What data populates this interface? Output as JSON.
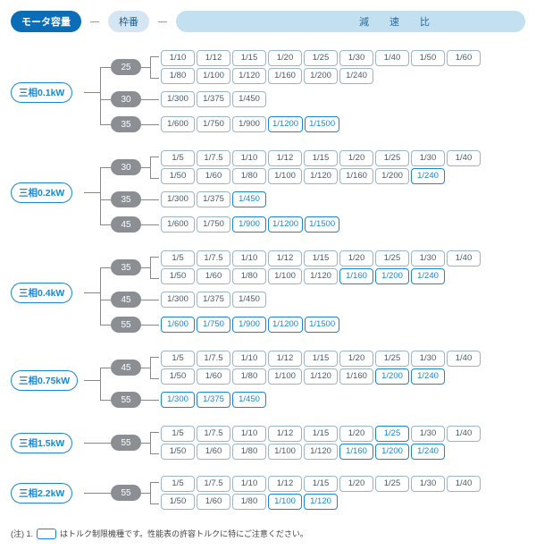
{
  "header": {
    "motor": "モータ容量",
    "frame": "枠番",
    "ratio": "減 速 比"
  },
  "groups": [
    {
      "motor": "三相0.1kW",
      "frames": [
        {
          "num": "25",
          "lines": [
            [
              {
                "v": "1/10"
              },
              {
                "v": "1/12"
              },
              {
                "v": "1/15"
              },
              {
                "v": "1/20"
              },
              {
                "v": "1/25"
              },
              {
                "v": "1/30"
              },
              {
                "v": "1/40"
              },
              {
                "v": "1/50"
              },
              {
                "v": "1/60"
              }
            ],
            [
              {
                "v": "1/80"
              },
              {
                "v": "1/100"
              },
              {
                "v": "1/120"
              },
              {
                "v": "1/160"
              },
              {
                "v": "1/200"
              },
              {
                "v": "1/240"
              }
            ]
          ]
        },
        {
          "num": "30",
          "lines": [
            [
              {
                "v": "1/300"
              },
              {
                "v": "1/375"
              },
              {
                "v": "1/450"
              }
            ]
          ]
        },
        {
          "num": "35",
          "lines": [
            [
              {
                "v": "1/600"
              },
              {
                "v": "1/750"
              },
              {
                "v": "1/900"
              },
              {
                "v": "1/1200",
                "hl": true
              },
              {
                "v": "1/1500",
                "hl": true
              }
            ]
          ]
        }
      ]
    },
    {
      "motor": "三相0.2kW",
      "frames": [
        {
          "num": "30",
          "lines": [
            [
              {
                "v": "1/5"
              },
              {
                "v": "1/7.5"
              },
              {
                "v": "1/10"
              },
              {
                "v": "1/12"
              },
              {
                "v": "1/15"
              },
              {
                "v": "1/20"
              },
              {
                "v": "1/25"
              },
              {
                "v": "1/30"
              },
              {
                "v": "1/40"
              }
            ],
            [
              {
                "v": "1/50"
              },
              {
                "v": "1/60"
              },
              {
                "v": "1/80"
              },
              {
                "v": "1/100"
              },
              {
                "v": "1/120"
              },
              {
                "v": "1/160"
              },
              {
                "v": "1/200"
              },
              {
                "v": "1/240",
                "hl": true
              }
            ]
          ]
        },
        {
          "num": "35",
          "lines": [
            [
              {
                "v": "1/300"
              },
              {
                "v": "1/375"
              },
              {
                "v": "1/450",
                "hl": true
              }
            ]
          ]
        },
        {
          "num": "45",
          "lines": [
            [
              {
                "v": "1/600"
              },
              {
                "v": "1/750"
              },
              {
                "v": "1/900",
                "hl": true
              },
              {
                "v": "1/1200",
                "hl": true
              },
              {
                "v": "1/1500",
                "hl": true
              }
            ]
          ]
        }
      ]
    },
    {
      "motor": "三相0.4kW",
      "frames": [
        {
          "num": "35",
          "lines": [
            [
              {
                "v": "1/5"
              },
              {
                "v": "1/7.5"
              },
              {
                "v": "1/10"
              },
              {
                "v": "1/12"
              },
              {
                "v": "1/15"
              },
              {
                "v": "1/20"
              },
              {
                "v": "1/25"
              },
              {
                "v": "1/30"
              },
              {
                "v": "1/40"
              }
            ],
            [
              {
                "v": "1/50"
              },
              {
                "v": "1/60"
              },
              {
                "v": "1/80"
              },
              {
                "v": "1/100"
              },
              {
                "v": "1/120"
              },
              {
                "v": "1/160",
                "hl": true
              },
              {
                "v": "1/200",
                "hl": true
              },
              {
                "v": "1/240",
                "hl": true
              }
            ]
          ]
        },
        {
          "num": "45",
          "lines": [
            [
              {
                "v": "1/300"
              },
              {
                "v": "1/375"
              },
              {
                "v": "1/450"
              }
            ]
          ]
        },
        {
          "num": "55",
          "lines": [
            [
              {
                "v": "1/600",
                "hl": true
              },
              {
                "v": "1/750",
                "hl": true
              },
              {
                "v": "1/900",
                "hl": true
              },
              {
                "v": "1/1200",
                "hl": true
              },
              {
                "v": "1/1500",
                "hl": true
              }
            ]
          ]
        }
      ]
    },
    {
      "motor": "三相0.75kW",
      "frames": [
        {
          "num": "45",
          "lines": [
            [
              {
                "v": "1/5"
              },
              {
                "v": "1/7.5"
              },
              {
                "v": "1/10"
              },
              {
                "v": "1/12"
              },
              {
                "v": "1/15"
              },
              {
                "v": "1/20"
              },
              {
                "v": "1/25"
              },
              {
                "v": "1/30"
              },
              {
                "v": "1/40"
              }
            ],
            [
              {
                "v": "1/50"
              },
              {
                "v": "1/60"
              },
              {
                "v": "1/80"
              },
              {
                "v": "1/100"
              },
              {
                "v": "1/120"
              },
              {
                "v": "1/160"
              },
              {
                "v": "1/200",
                "hl": true
              },
              {
                "v": "1/240",
                "hl": true
              }
            ]
          ]
        },
        {
          "num": "55",
          "lines": [
            [
              {
                "v": "1/300",
                "hl": true
              },
              {
                "v": "1/375",
                "hl": true
              },
              {
                "v": "1/450",
                "hl": true
              }
            ]
          ]
        }
      ]
    },
    {
      "motor": "三相1.5kW",
      "frames": [
        {
          "num": "55",
          "lines": [
            [
              {
                "v": "1/5"
              },
              {
                "v": "1/7.5"
              },
              {
                "v": "1/10"
              },
              {
                "v": "1/12"
              },
              {
                "v": "1/15"
              },
              {
                "v": "1/20"
              },
              {
                "v": "1/25",
                "hl": true
              },
              {
                "v": "1/30"
              },
              {
                "v": "1/40"
              }
            ],
            [
              {
                "v": "1/50"
              },
              {
                "v": "1/60"
              },
              {
                "v": "1/80"
              },
              {
                "v": "1/100"
              },
              {
                "v": "1/120"
              },
              {
                "v": "1/160",
                "hl": true
              },
              {
                "v": "1/200",
                "hl": true
              },
              {
                "v": "1/240",
                "hl": true
              }
            ]
          ]
        }
      ]
    },
    {
      "motor": "三相2.2kW",
      "frames": [
        {
          "num": "55",
          "lines": [
            [
              {
                "v": "1/5"
              },
              {
                "v": "1/7.5"
              },
              {
                "v": "1/10"
              },
              {
                "v": "1/12"
              },
              {
                "v": "1/15"
              },
              {
                "v": "1/20"
              },
              {
                "v": "1/25"
              },
              {
                "v": "1/30"
              },
              {
                "v": "1/40"
              }
            ],
            [
              {
                "v": "1/50"
              },
              {
                "v": "1/60"
              },
              {
                "v": "1/80"
              },
              {
                "v": "1/100",
                "hl": true
              },
              {
                "v": "1/120",
                "hl": true
              }
            ]
          ]
        }
      ]
    }
  ],
  "footnote": {
    "prefix": "(注) 1.",
    "text": "はトルク制限機種です。性能表の許容トルクに特にご注意ください。"
  }
}
